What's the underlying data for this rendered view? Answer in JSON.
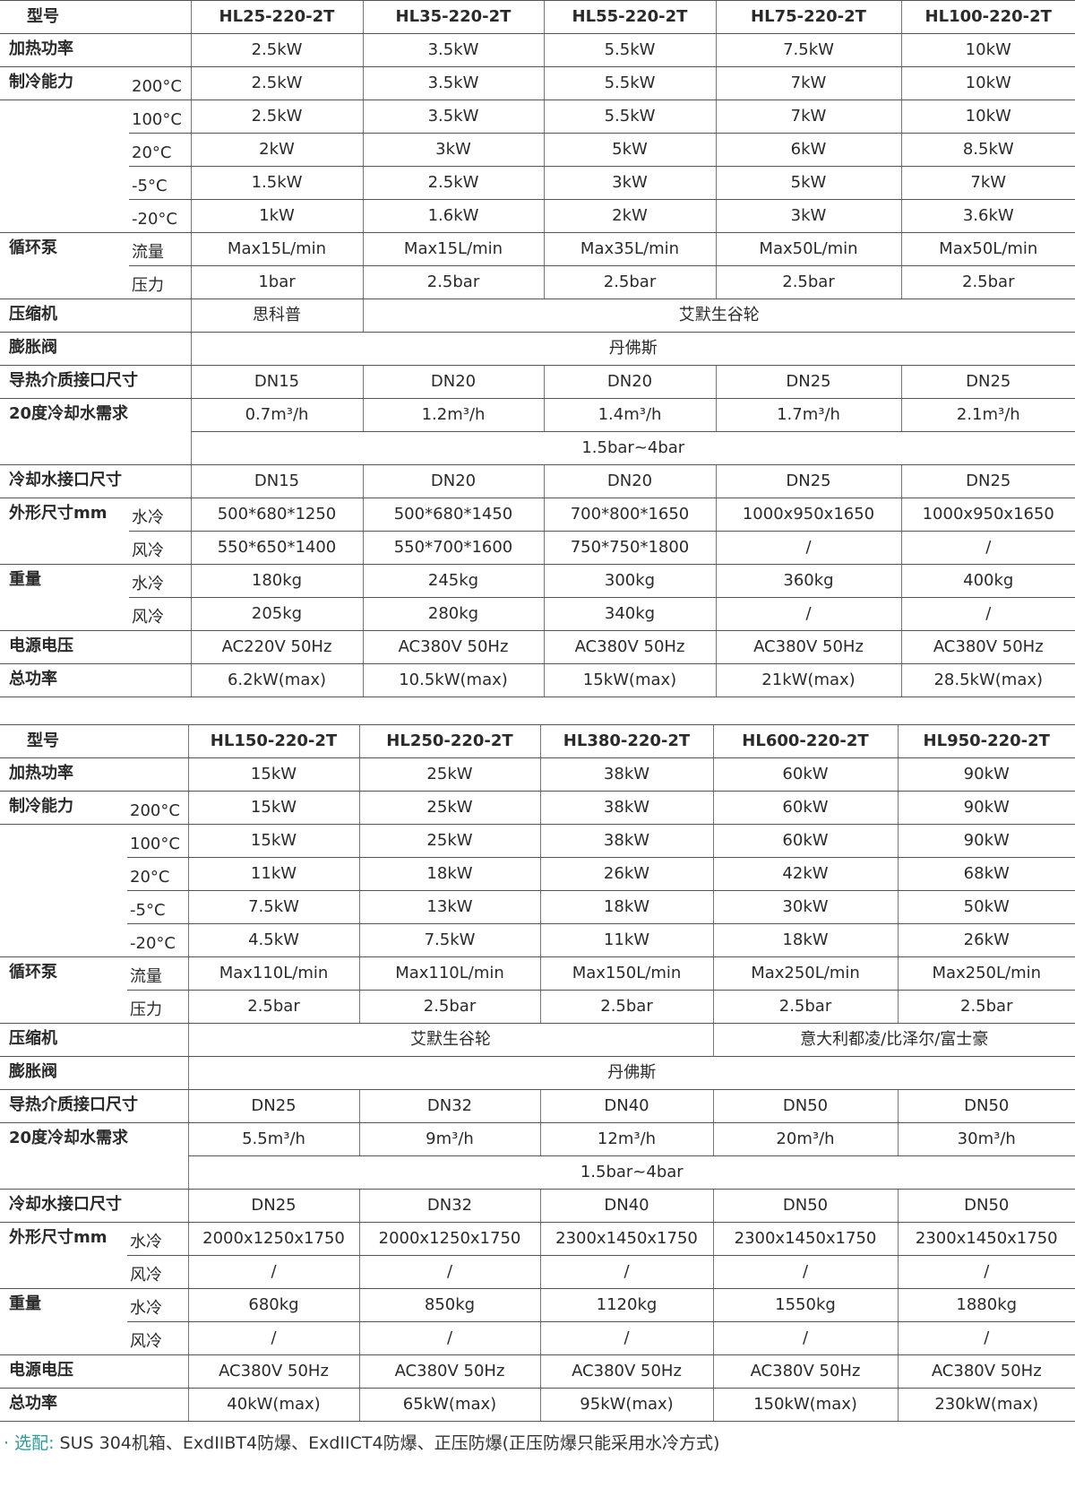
{
  "tables": [
    {
      "header_label": "型号",
      "models": [
        "HL25-220-2T",
        "HL35-220-2T",
        "HL55-220-2T",
        "HL75-220-2T",
        "HL100-220-2T"
      ],
      "rows": [
        {
          "label": "加热功率",
          "values": [
            "2.5kW",
            "3.5kW",
            "5.5kW",
            "7.5kW",
            "10kW"
          ]
        },
        {
          "label": "制冷能力",
          "sub": "200°C",
          "values": [
            "2.5kW",
            "3.5kW",
            "5.5kW",
            "7kW",
            "10kW"
          ]
        },
        {
          "label": "",
          "sub": "100°C",
          "values": [
            "2.5kW",
            "3.5kW",
            "5.5kW",
            "7kW",
            "10kW"
          ]
        },
        {
          "sub": "20°C",
          "values": [
            "2kW",
            "3kW",
            "5kW",
            "6kW",
            "8.5kW"
          ]
        },
        {
          "sub": "-5°C",
          "values": [
            "1.5kW",
            "2.5kW",
            "3kW",
            "5kW",
            "7kW"
          ]
        },
        {
          "sub": "-20°C",
          "values": [
            "1kW",
            "1.6kW",
            "2kW",
            "3kW",
            "3.6kW"
          ]
        },
        {
          "label": "循环泵",
          "sub": "流量",
          "values": [
            "Max15L/min",
            "Max15L/min",
            "Max35L/min",
            "Max50L/min",
            "Max50L/min"
          ]
        },
        {
          "sub": "压力",
          "values": [
            "1bar",
            "2.5bar",
            "2.5bar",
            "2.5bar",
            "2.5bar"
          ]
        },
        {
          "label": "压缩机",
          "values": [
            "思科普",
            {
              "text": "艾默生谷轮",
              "span": 4
            }
          ]
        },
        {
          "label": "膨胀阀",
          "values": [
            {
              "text": "丹佛斯",
              "span": 5
            }
          ]
        },
        {
          "label": "导热介质接口尺寸",
          "values": [
            "DN15",
            "DN20",
            "DN20",
            "DN25",
            "DN25"
          ]
        },
        {
          "label": "20度冷却水需求",
          "values": [
            "0.7m³/h",
            "1.2m³/h",
            "1.4m³/h",
            "1.7m³/h",
            "2.1m³/h"
          ]
        },
        {
          "values": [
            {
              "text": "1.5bar~4bar",
              "span": 5
            }
          ]
        },
        {
          "label": "冷却水接口尺寸",
          "values": [
            "DN15",
            "DN20",
            "DN20",
            "DN25",
            "DN25"
          ]
        },
        {
          "label": "外形尺寸mm",
          "sub": "水冷",
          "values": [
            "500*680*1250",
            "500*680*1450",
            "700*800*1650",
            "1000x950x1650",
            "1000x950x1650"
          ]
        },
        {
          "sub": "风冷",
          "values": [
            "550*650*1400",
            "550*700*1600",
            "750*750*1800",
            "/",
            "/"
          ]
        },
        {
          "label": "重量",
          "sub": "水冷",
          "values": [
            "180kg",
            "245kg",
            "300kg",
            "360kg",
            "400kg"
          ]
        },
        {
          "sub": "风冷",
          "values": [
            "205kg",
            "280kg",
            "340kg",
            "/",
            "/"
          ]
        },
        {
          "label": "电源电压",
          "values": [
            "AC220V 50Hz",
            "AC380V 50Hz",
            "AC380V 50Hz",
            "AC380V 50Hz",
            "AC380V 50Hz"
          ]
        },
        {
          "label": "总功率",
          "values": [
            "6.2kW(max)",
            "10.5kW(max)",
            "15kW(max)",
            "21kW(max)",
            "28.5kW(max)"
          ]
        }
      ]
    },
    {
      "header_label": "型号",
      "models": [
        "HL150-220-2T",
        "HL250-220-2T",
        "HL380-220-2T",
        "HL600-220-2T",
        "HL950-220-2T"
      ],
      "rows": [
        {
          "label": "加热功率",
          "values": [
            "15kW",
            "25kW",
            "38kW",
            "60kW",
            "90kW"
          ]
        },
        {
          "label": "制冷能力",
          "sub": "200°C",
          "values": [
            "15kW",
            "25kW",
            "38kW",
            "60kW",
            "90kW"
          ]
        },
        {
          "label": "",
          "sub": "100°C",
          "values": [
            "15kW",
            "25kW",
            "38kW",
            "60kW",
            "90kW"
          ]
        },
        {
          "sub": "20°C",
          "values": [
            "11kW",
            "18kW",
            "26kW",
            "42kW",
            "68kW"
          ]
        },
        {
          "sub": "-5°C",
          "values": [
            "7.5kW",
            "13kW",
            "18kW",
            "30kW",
            "50kW"
          ]
        },
        {
          "sub": "-20°C",
          "values": [
            "4.5kW",
            "7.5kW",
            "11kW",
            "18kW",
            "26kW"
          ]
        },
        {
          "label": "循环泵",
          "sub": "流量",
          "values": [
            "Max110L/min",
            "Max110L/min",
            "Max150L/min",
            "Max250L/min",
            "Max250L/min"
          ]
        },
        {
          "sub": "压力",
          "values": [
            "2.5bar",
            "2.5bar",
            "2.5bar",
            "2.5bar",
            "2.5bar"
          ]
        },
        {
          "label": "压缩机",
          "values": [
            {
              "text": "艾默生谷轮",
              "span": 3
            },
            {
              "text": "意大利都凌/比泽尔/富士豪",
              "span": 2
            }
          ]
        },
        {
          "label": "膨胀阀",
          "values": [
            {
              "text": "丹佛斯",
              "span": 5
            }
          ]
        },
        {
          "label": "导热介质接口尺寸",
          "values": [
            "DN25",
            "DN32",
            "DN40",
            "DN50",
            "DN50"
          ]
        },
        {
          "label": "20度冷却水需求",
          "values": [
            "5.5m³/h",
            "9m³/h",
            "12m³/h",
            "20m³/h",
            "30m³/h"
          ]
        },
        {
          "values": [
            {
              "text": "1.5bar~4bar",
              "span": 5
            }
          ]
        },
        {
          "label": "冷却水接口尺寸",
          "values": [
            "DN25",
            "DN32",
            "DN40",
            "DN50",
            "DN50"
          ]
        },
        {
          "label": "外形尺寸mm",
          "sub": "水冷",
          "values": [
            "2000x1250x1750",
            "2000x1250x1750",
            "2300x1450x1750",
            "2300x1450x1750",
            "2300x1450x1750"
          ]
        },
        {
          "sub": "风冷",
          "values": [
            "/",
            "/",
            "/",
            "/",
            "/"
          ]
        },
        {
          "label": "重量",
          "sub": "水冷",
          "values": [
            "680kg",
            "850kg",
            "1120kg",
            "1550kg",
            "1880kg"
          ]
        },
        {
          "sub": "风冷",
          "values": [
            "/",
            "/",
            "/",
            "/",
            "/"
          ]
        },
        {
          "label": "电源电压",
          "values": [
            "AC380V 50Hz",
            "AC380V 50Hz",
            "AC380V 50Hz",
            "AC380V 50Hz",
            "AC380V 50Hz"
          ]
        },
        {
          "label": "总功率",
          "values": [
            "40kW(max)",
            "65kW(max)",
            "95kW(max)",
            "150kW(max)",
            "230kW(max)"
          ]
        }
      ]
    }
  ],
  "footer": {
    "bullet": "·",
    "title": "选配:",
    "text": "SUS 304机箱、ExdIIBT4防爆、ExdIICT4防爆、正压防爆(正压防爆只能采用水冷方式)"
  },
  "colors": {
    "accent": "#2a9d9a",
    "rule": "#555555"
  }
}
